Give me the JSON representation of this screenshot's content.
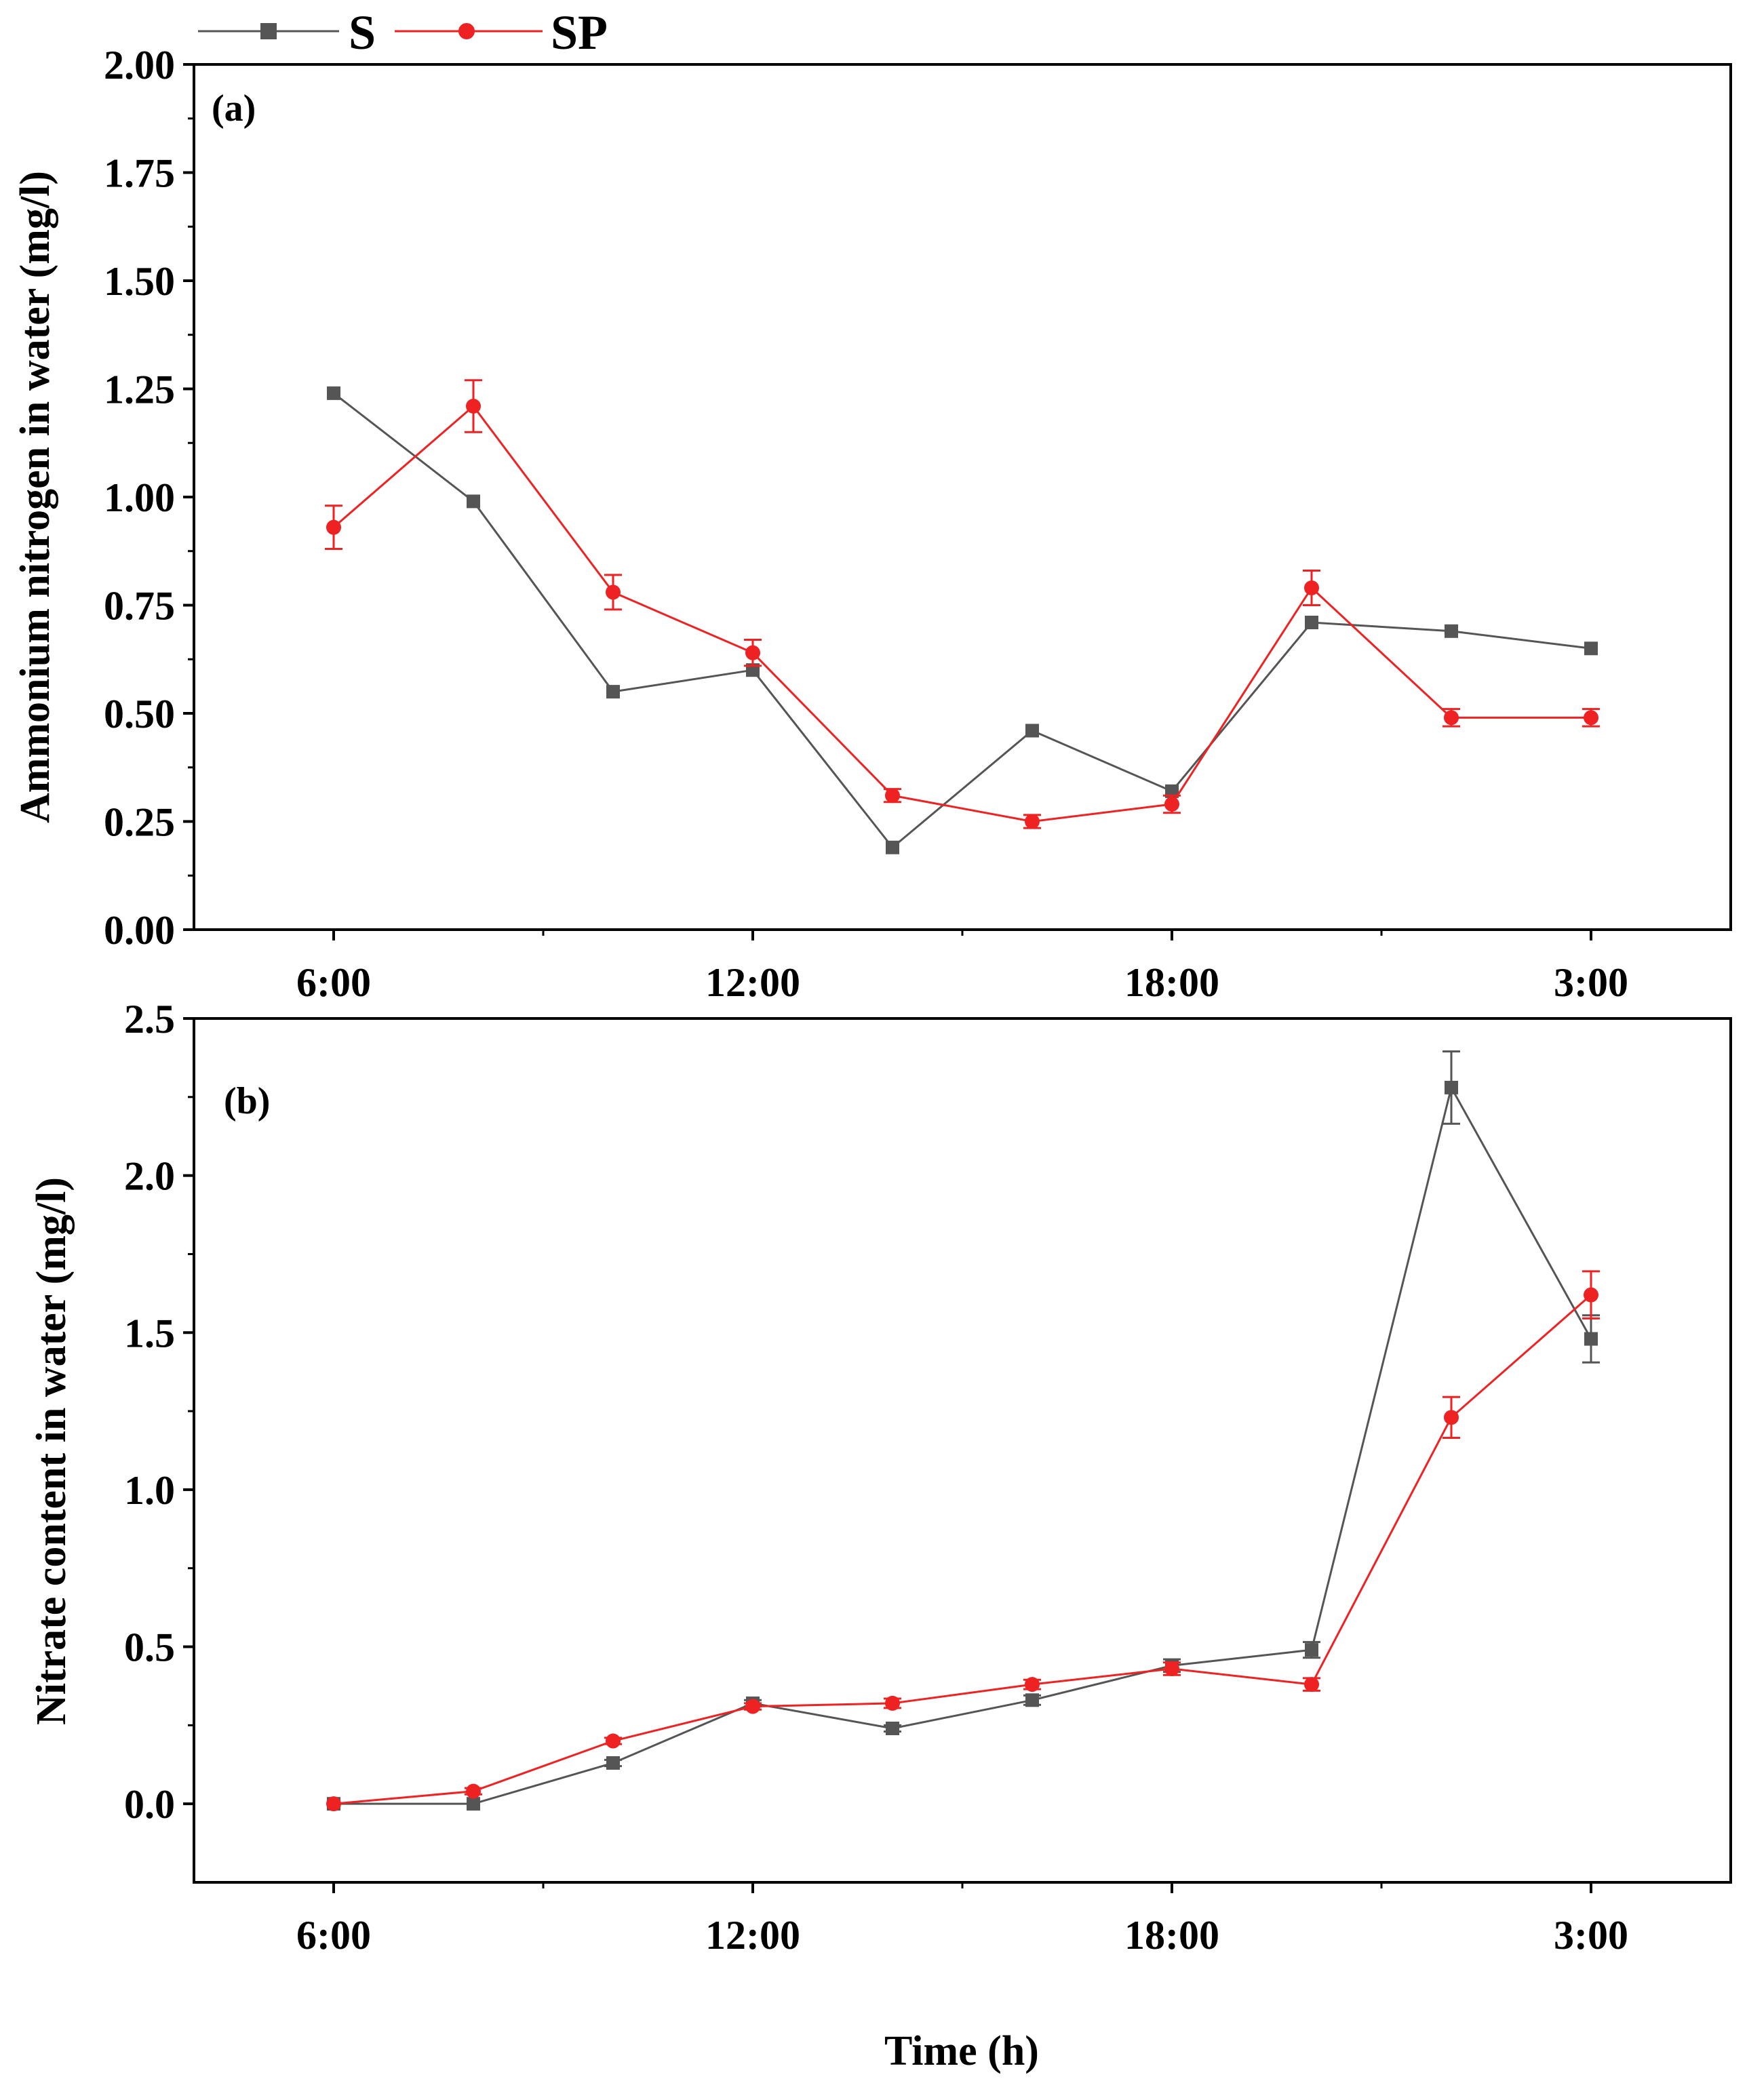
{
  "colors": {
    "S": "#555555",
    "SP": "#ee2222",
    "axis": "#000000",
    "background": "#ffffff"
  },
  "legend": [
    {
      "name": "S",
      "marker": "square"
    },
    {
      "name": "SP",
      "marker": "circle"
    }
  ],
  "chart_data": [
    {
      "type": "line",
      "panel_label": "(a)",
      "ylabel": "Ammonium nitrogen in water (mg/l)",
      "xlabel": "",
      "ylim": [
        0,
        2
      ],
      "yticks": [
        "0.00",
        "0.25",
        "0.50",
        "0.75",
        "1.00",
        "1.25",
        "1.50",
        "1.75",
        "2.00"
      ],
      "xlim": [
        -1,
        10
      ],
      "xticks": [
        {
          "pos": 0,
          "label": "6:00"
        },
        {
          "pos": 3,
          "label": "12:00"
        },
        {
          "pos": 6,
          "label": "18:00"
        },
        {
          "pos": 9,
          "label": "3:00"
        }
      ],
      "x": [
        0,
        1,
        2,
        3,
        4,
        5,
        6,
        7,
        8,
        9
      ],
      "series": [
        {
          "name": "S",
          "marker": "square",
          "values": [
            1.24,
            0.99,
            0.55,
            0.6,
            0.19,
            0.46,
            0.32,
            0.71,
            0.69,
            0.65
          ],
          "errors": [
            0,
            0,
            0,
            0,
            0,
            0,
            0,
            0,
            0,
            0
          ]
        },
        {
          "name": "SP",
          "marker": "circle",
          "values": [
            0.93,
            1.21,
            0.78,
            0.64,
            0.31,
            0.25,
            0.29,
            0.79,
            0.49,
            0.49
          ],
          "errors": [
            0.05,
            0.06,
            0.04,
            0.03,
            0.015,
            0.015,
            0.02,
            0.04,
            0.02,
            0.02
          ]
        }
      ]
    },
    {
      "type": "line",
      "panel_label": "(b)",
      "ylabel": "Nitrate content in water (mg/l)",
      "xlabel": "Time (h)",
      "ylim": [
        -0.25,
        2.5
      ],
      "yticks": [
        "0.0",
        "0.5",
        "1.0",
        "1.5",
        "2.0",
        "2.5"
      ],
      "xlim": [
        -1,
        10
      ],
      "xticks": [
        {
          "pos": 0,
          "label": "6:00"
        },
        {
          "pos": 3,
          "label": "12:00"
        },
        {
          "pos": 6,
          "label": "18:00"
        },
        {
          "pos": 9,
          "label": "3:00"
        }
      ],
      "x": [
        0,
        1,
        2,
        3,
        4,
        5,
        6,
        7,
        8,
        9
      ],
      "series": [
        {
          "name": "S",
          "marker": "square",
          "values": [
            0.0,
            0.0,
            0.13,
            0.32,
            0.24,
            0.33,
            0.44,
            0.49,
            2.28,
            1.48
          ],
          "errors": [
            0,
            0,
            0.01,
            0.01,
            0.01,
            0.015,
            0.02,
            0.025,
            0.115,
            0.075
          ]
        },
        {
          "name": "SP",
          "marker": "circle",
          "values": [
            0.0,
            0.04,
            0.2,
            0.31,
            0.32,
            0.38,
            0.43,
            0.38,
            1.23,
            1.62
          ],
          "errors": [
            0,
            0.01,
            0.01,
            0.01,
            0.015,
            0.015,
            0.02,
            0.02,
            0.065,
            0.075
          ]
        }
      ]
    }
  ]
}
